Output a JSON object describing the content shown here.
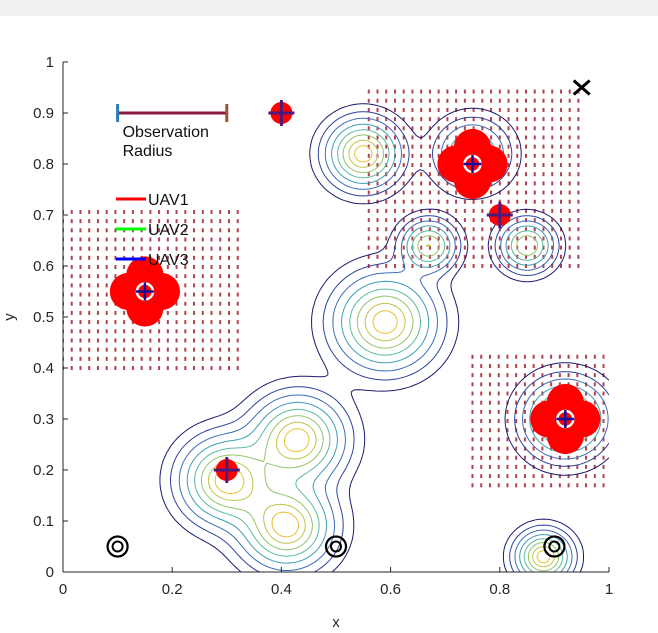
{
  "chart_data": {
    "type": "contour",
    "xlabel": "x",
    "ylabel": "y",
    "xlim": [
      0,
      1
    ],
    "ylim": [
      0,
      1
    ],
    "x_ticks": [
      "0",
      "0.2",
      "0.4",
      "0.6",
      "0.8",
      "1"
    ],
    "y_ticks": [
      "0",
      "0.1",
      "0.2",
      "0.3",
      "0.4",
      "0.5",
      "0.6",
      "0.7",
      "0.8",
      "0.9",
      "1"
    ],
    "legend": {
      "location": "upper-left",
      "entries": [
        {
          "label": "UAV1",
          "color": "#ff0000"
        },
        {
          "label": "UAV2",
          "color": "#00ff00"
        },
        {
          "label": "UAV3",
          "color": "#0000ff"
        }
      ]
    },
    "observation_radius": {
      "label": "Observation\nRadius",
      "x_start": 0.1,
      "x_end": 0.3,
      "y": 0.9
    },
    "peaks": [
      {
        "x": 0.55,
        "y": 0.82,
        "amp": 1.0,
        "sigma": 0.04
      },
      {
        "x": 0.67,
        "y": 0.64,
        "amp": 0.8,
        "sigma": 0.03
      },
      {
        "x": 0.85,
        "y": 0.64,
        "amp": 0.8,
        "sigma": 0.03
      },
      {
        "x": 0.59,
        "y": 0.49,
        "amp": 1.0,
        "sigma": 0.055
      },
      {
        "x": 0.3,
        "y": 0.18,
        "amp": 1.0,
        "sigma": 0.05
      },
      {
        "x": 0.43,
        "y": 0.26,
        "amp": 1.0,
        "sigma": 0.05
      },
      {
        "x": 0.41,
        "y": 0.09,
        "amp": 1.0,
        "sigma": 0.05
      },
      {
        "x": 0.92,
        "y": 0.3,
        "amp": 1.0,
        "sigma": 0.045
      },
      {
        "x": 0.88,
        "y": 0.03,
        "amp": 1.0,
        "sigma": 0.03
      },
      {
        "x": 0.75,
        "y": 0.82,
        "amp": 0.6,
        "sigma": 0.04
      }
    ],
    "contour_levels": [
      0.05,
      0.12,
      0.22,
      0.35,
      0.5,
      0.65,
      0.8,
      0.92
    ],
    "uav_positions": [
      {
        "x": 0.15,
        "y": 0.55,
        "marker": "big"
      },
      {
        "x": 0.4,
        "y": 0.9,
        "marker": "small"
      },
      {
        "x": 0.75,
        "y": 0.8,
        "marker": "big"
      },
      {
        "x": 0.8,
        "y": 0.7,
        "marker": "small"
      },
      {
        "x": 0.92,
        "y": 0.3,
        "marker": "big"
      },
      {
        "x": 0.3,
        "y": 0.2,
        "marker": "small"
      }
    ],
    "dotted_regions": [
      {
        "x_min": 0.0,
        "x_max": 0.32,
        "y_min": 0.4,
        "y_max": 0.72
      },
      {
        "x_min": 0.56,
        "x_max": 0.95,
        "y_min": 0.6,
        "y_max": 0.95
      },
      {
        "x_min": 0.75,
        "x_max": 1.0,
        "y_min": 0.17,
        "y_max": 0.43
      }
    ],
    "start_markers": [
      {
        "x": 0.1,
        "y": 0.05
      },
      {
        "x": 0.5,
        "y": 0.05
      },
      {
        "x": 0.9,
        "y": 0.05
      }
    ],
    "goal_marker": {
      "x": 0.95,
      "y": 0.95
    }
  }
}
